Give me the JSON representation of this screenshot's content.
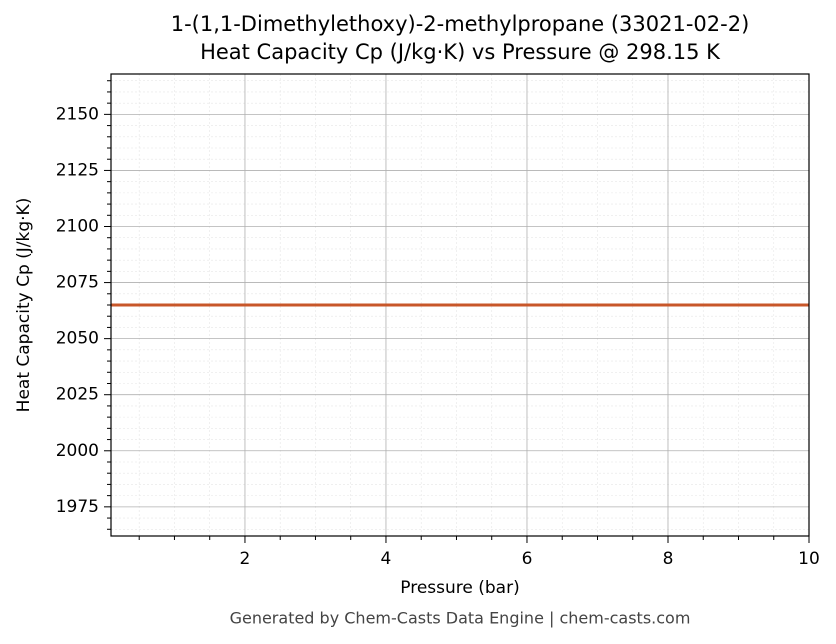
{
  "chart_data": {
    "type": "line",
    "title": "1-(1,1-Dimethylethoxy)-2-methylpropane (33021-02-2)",
    "subtitle": "Heat Capacity Cp (J/kg·K) vs Pressure @ 298.15 K",
    "x_label": "Pressure (bar)",
    "y_label": "Heat Capacity Cp (J/kg·K)",
    "footer": "Generated by Chem-Casts Data Engine | chem-casts.com",
    "x": [
      0.1,
      10
    ],
    "series": [
      {
        "name": "Cp",
        "color": "#c8572a",
        "values": [
          2065,
          2065
        ]
      }
    ],
    "xlim": [
      0.1,
      10
    ],
    "ylim": [
      1962,
      2168
    ],
    "xticks": [
      2,
      4,
      6,
      8,
      10
    ],
    "yticks": [
      1975,
      2000,
      2025,
      2050,
      2075,
      2100,
      2125,
      2150
    ],
    "xminorticks": [
      0.5,
      1,
      1.5,
      2.5,
      3,
      3.5,
      4.5,
      5,
      5.5,
      6.5,
      7,
      7.5,
      8.5,
      9,
      9.5
    ],
    "yminorticks": [
      1965,
      1970,
      1980,
      1985,
      1990,
      1995,
      2005,
      2010,
      2015,
      2020,
      2030,
      2035,
      2040,
      2045,
      2055,
      2060,
      2065,
      2070,
      2080,
      2085,
      2090,
      2095,
      2105,
      2110,
      2115,
      2120,
      2130,
      2135,
      2140,
      2145,
      2155,
      2160,
      2165
    ],
    "grid": true
  }
}
